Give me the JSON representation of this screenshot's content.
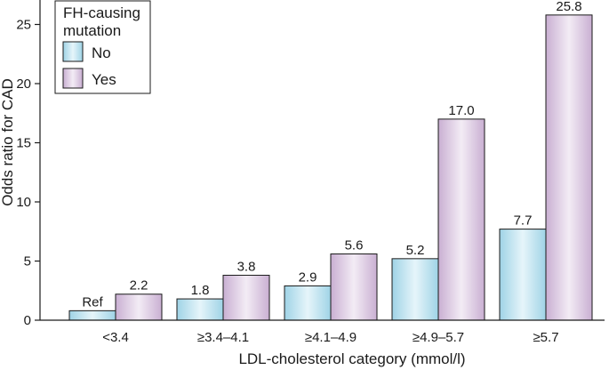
{
  "chart_data": {
    "type": "bar",
    "title": "",
    "xlabel": "LDL-cholesterol category (mmol/l)",
    "ylabel": "Odds ratio for CAD",
    "ylim": [
      0,
      27
    ],
    "yticks": [
      0,
      5,
      10,
      15,
      20,
      25
    ],
    "categories": [
      "<3.4",
      "≥3.4–4.1",
      "≥4.1–4.9",
      "≥4.9–5.7",
      "≥5.7"
    ],
    "legend": {
      "title_line1": "FH-causing",
      "title_line2": "mutation",
      "position": "top-left"
    },
    "series": [
      {
        "name": "No",
        "values": [
          0.8,
          1.8,
          2.9,
          5.2,
          7.7
        ],
        "labels": [
          "Ref",
          "1.8",
          "2.9",
          "5.2",
          "7.7"
        ],
        "color_light": "#e6f5fa",
        "color_dark": "#9fd3e6"
      },
      {
        "name": "Yes",
        "values": [
          2.2,
          3.8,
          5.6,
          17.0,
          25.8
        ],
        "labels": [
          "2.2",
          "3.8",
          "5.6",
          "17.0",
          "25.8"
        ],
        "color_light": "#f3ecf5",
        "color_dark": "#c9afd2"
      }
    ]
  }
}
